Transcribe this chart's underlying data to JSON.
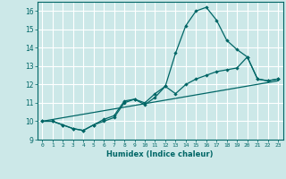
{
  "title": "",
  "xlabel": "Humidex (Indice chaleur)",
  "bg_color": "#cce8e8",
  "line_color": "#006666",
  "grid_color": "#ffffff",
  "xlim": [
    -0.5,
    23.5
  ],
  "ylim": [
    9,
    16.5
  ],
  "yticks": [
    9,
    10,
    11,
    12,
    13,
    14,
    15,
    16
  ],
  "xticks": [
    0,
    1,
    2,
    3,
    4,
    5,
    6,
    7,
    8,
    9,
    10,
    11,
    12,
    13,
    14,
    15,
    16,
    17,
    18,
    19,
    20,
    21,
    22,
    23
  ],
  "line1_x": [
    0,
    1,
    2,
    3,
    4,
    5,
    6,
    7,
    8,
    9,
    10,
    11,
    12,
    13,
    14,
    15,
    16,
    17,
    18,
    19,
    20,
    21,
    22,
    23
  ],
  "line1_y": [
    10.0,
    10.0,
    9.8,
    9.6,
    9.5,
    9.8,
    10.1,
    10.3,
    11.1,
    11.2,
    11.0,
    11.5,
    11.9,
    13.7,
    15.2,
    16.0,
    16.2,
    15.5,
    14.4,
    13.9,
    13.5,
    12.3,
    12.2,
    12.3
  ],
  "line2_x": [
    0,
    1,
    2,
    3,
    4,
    5,
    6,
    7,
    8,
    9,
    10,
    11,
    12,
    13,
    14,
    15,
    16,
    17,
    18,
    19,
    20,
    21,
    22,
    23
  ],
  "line2_y": [
    10.0,
    10.0,
    9.8,
    9.6,
    9.5,
    9.8,
    10.0,
    10.2,
    11.0,
    11.2,
    10.9,
    11.3,
    11.9,
    11.5,
    12.0,
    12.3,
    12.5,
    12.7,
    12.8,
    12.9,
    13.5,
    12.3,
    12.2,
    12.3
  ],
  "line3_x": [
    0,
    23
  ],
  "line3_y": [
    10.0,
    12.2
  ]
}
